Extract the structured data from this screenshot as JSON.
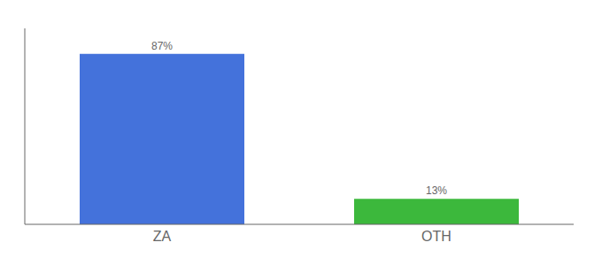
{
  "chart_data": {
    "type": "bar",
    "categories": [
      "ZA",
      "OTH"
    ],
    "values": [
      87,
      13
    ],
    "value_labels": [
      "87%",
      "13%"
    ],
    "colors": [
      "#4472db",
      "#3cb83c"
    ],
    "ylim": [
      0,
      100
    ],
    "data_labels": true,
    "tick_labels": "x",
    "grid": false
  }
}
